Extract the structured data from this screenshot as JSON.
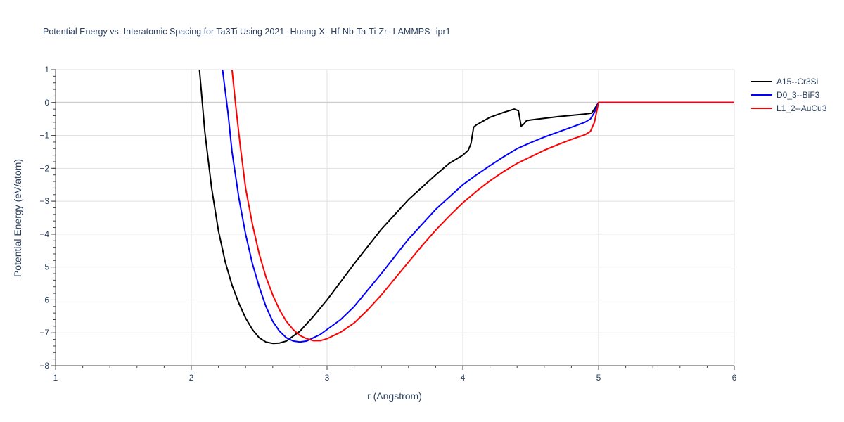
{
  "chart_data": {
    "type": "line",
    "title": "Potential Energy vs. Interatomic Spacing for Ta3Ti Using 2021--Huang-X--Hf-Nb-Ta-Ti-Zr--LAMMPS--ipr1",
    "xlabel": "r (Angstrom)",
    "ylabel": "Potential Energy (eV/atom)",
    "xlim": [
      1,
      6
    ],
    "ylim": [
      -8,
      1
    ],
    "xticks": [
      1,
      2,
      3,
      4,
      5,
      6
    ],
    "yticks": [
      1,
      0,
      -1,
      -2,
      -3,
      -4,
      -5,
      -6,
      -7,
      -8
    ],
    "grid": true,
    "legend_position": "top-right",
    "series": [
      {
        "name": "A15--Cr3Si",
        "color": "#000000",
        "x": [
          2.06,
          2.1,
          2.15,
          2.2,
          2.25,
          2.3,
          2.35,
          2.4,
          2.45,
          2.5,
          2.55,
          2.6,
          2.65,
          2.7,
          2.8,
          2.9,
          3.0,
          3.2,
          3.4,
          3.6,
          3.8,
          3.9,
          4.0,
          4.04,
          4.06,
          4.08,
          4.1,
          4.2,
          4.3,
          4.38,
          4.41,
          4.43,
          4.45,
          4.47,
          4.5,
          4.6,
          4.7,
          4.8,
          4.9,
          4.95,
          5.0,
          5.5,
          6.0
        ],
        "y": [
          1.0,
          -0.9,
          -2.6,
          -3.9,
          -4.85,
          -5.55,
          -6.1,
          -6.55,
          -6.9,
          -7.15,
          -7.28,
          -7.32,
          -7.31,
          -7.25,
          -6.95,
          -6.5,
          -6.0,
          -4.9,
          -3.85,
          -2.95,
          -2.2,
          -1.85,
          -1.6,
          -1.45,
          -1.25,
          -0.75,
          -0.68,
          -0.45,
          -0.3,
          -0.2,
          -0.25,
          -0.72,
          -0.65,
          -0.55,
          -0.53,
          -0.48,
          -0.43,
          -0.39,
          -0.35,
          -0.32,
          0.0,
          0.0,
          0.0
        ],
        "visible_range": "r from about 2.06"
      },
      {
        "name": "D0_3--BiF3",
        "color": "#0000ff",
        "x": [
          2.23,
          2.27,
          2.3,
          2.35,
          2.4,
          2.45,
          2.5,
          2.55,
          2.6,
          2.65,
          2.7,
          2.75,
          2.8,
          2.85,
          2.9,
          2.95,
          3.0,
          3.1,
          3.2,
          3.4,
          3.6,
          3.8,
          4.0,
          4.1,
          4.2,
          4.3,
          4.4,
          4.5,
          4.6,
          4.7,
          4.8,
          4.9,
          4.94,
          4.97,
          5.0,
          5.5,
          6.0
        ],
        "y": [
          1.0,
          -0.3,
          -1.5,
          -2.9,
          -4.0,
          -4.9,
          -5.6,
          -6.2,
          -6.65,
          -6.95,
          -7.15,
          -7.25,
          -7.28,
          -7.25,
          -7.15,
          -7.05,
          -6.9,
          -6.6,
          -6.2,
          -5.2,
          -4.15,
          -3.25,
          -2.5,
          -2.2,
          -1.92,
          -1.65,
          -1.4,
          -1.22,
          -1.05,
          -0.9,
          -0.75,
          -0.6,
          -0.5,
          -0.3,
          0.0,
          0.0,
          0.0
        ],
        "visible_range": "r from about 2.23"
      },
      {
        "name": "L1_2--AuCu3",
        "color": "#ff0000",
        "x": [
          2.3,
          2.33,
          2.36,
          2.4,
          2.45,
          2.5,
          2.55,
          2.6,
          2.65,
          2.7,
          2.75,
          2.8,
          2.85,
          2.9,
          2.95,
          3.0,
          3.1,
          3.2,
          3.3,
          3.4,
          3.5,
          3.6,
          3.7,
          3.8,
          3.9,
          4.0,
          4.1,
          4.2,
          4.3,
          4.4,
          4.5,
          4.6,
          4.7,
          4.8,
          4.9,
          4.94,
          4.97,
          5.0,
          5.5,
          6.0
        ],
        "y": [
          1.0,
          -0.2,
          -1.3,
          -2.6,
          -3.7,
          -4.6,
          -5.3,
          -5.85,
          -6.3,
          -6.65,
          -6.9,
          -7.08,
          -7.18,
          -7.24,
          -7.24,
          -7.18,
          -6.98,
          -6.7,
          -6.3,
          -5.85,
          -5.35,
          -4.85,
          -4.35,
          -3.88,
          -3.45,
          -3.05,
          -2.7,
          -2.38,
          -2.1,
          -1.85,
          -1.65,
          -1.45,
          -1.28,
          -1.12,
          -0.98,
          -0.88,
          -0.6,
          0.0,
          0.0,
          0.0
        ],
        "visible_range": "r from about 2.30"
      }
    ]
  }
}
